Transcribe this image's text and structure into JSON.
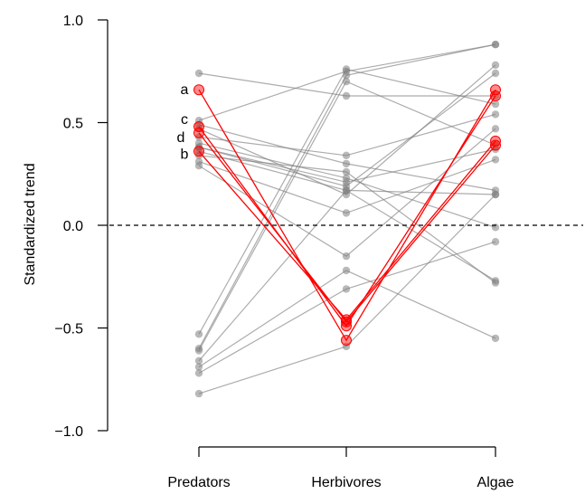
{
  "chart_data": {
    "type": "line",
    "ylabel": "Standardized trend",
    "xlabel": "",
    "categories": [
      "Predators",
      "Herbivores",
      "Algae"
    ],
    "ylim": [
      -1.0,
      1.0
    ],
    "yticks": [
      -1.0,
      -0.5,
      0.0,
      0.5,
      1.0
    ],
    "ytick_labels": [
      "−1.0",
      "−0.5",
      "0.0",
      "0.5",
      "1.0"
    ],
    "reference_line": 0.0,
    "colors": {
      "background": "#808080",
      "highlight": "#ff0000"
    },
    "background_series": [
      [
        0.74,
        0.63,
        0.63
      ],
      [
        0.51,
        0.75,
        0.88
      ],
      [
        0.49,
        0.3,
        0.17
      ],
      [
        0.47,
        0.15,
        0.78
      ],
      [
        0.43,
        0.34,
        0.54
      ],
      [
        0.4,
        0.23,
        -0.01
      ],
      [
        0.38,
        0.21,
        0.37
      ],
      [
        0.38,
        0.19,
        0.74
      ],
      [
        0.36,
        0.17,
        -0.27
      ],
      [
        0.34,
        0.26,
        -0.28
      ],
      [
        0.31,
        0.06,
        0.32
      ],
      [
        0.29,
        -0.15,
        0.47
      ],
      [
        -0.53,
        0.76,
        0.59
      ],
      [
        -0.6,
        0.73,
        0.88
      ],
      [
        -0.61,
        0.7,
        0.39
      ],
      [
        -0.66,
        0.17,
        0.15
      ],
      [
        -0.69,
        -0.22,
        -0.55
      ],
      [
        -0.72,
        -0.31,
        -0.08
      ],
      [
        -0.82,
        -0.59,
        0.15
      ]
    ],
    "series": [
      {
        "name": "a",
        "values": [
          0.66,
          -0.56,
          0.66
        ]
      },
      {
        "name": "b",
        "values": [
          0.36,
          -0.46,
          0.41
        ]
      },
      {
        "name": "c",
        "values": [
          0.48,
          -0.49,
          0.63
        ]
      },
      {
        "name": "d",
        "values": [
          0.45,
          -0.47,
          0.39
        ]
      }
    ]
  }
}
